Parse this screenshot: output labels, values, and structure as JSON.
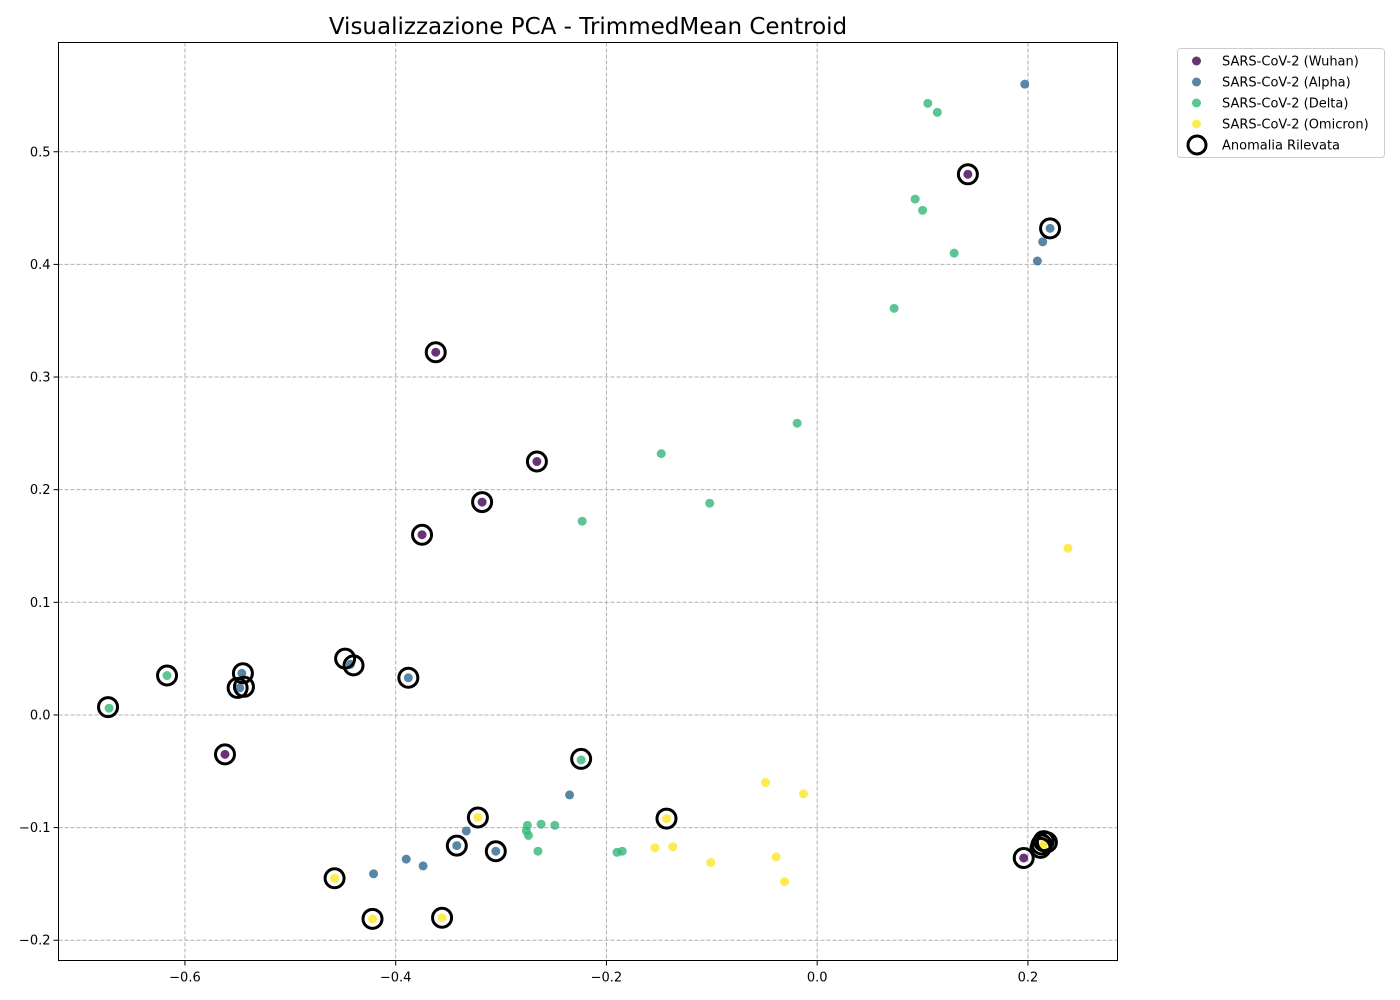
{
  "chart_data": {
    "type": "scatter",
    "title": "Visualizzazione PCA - TrimmedMean Centroid",
    "xlabel": "",
    "ylabel": "",
    "xlim": [
      -0.72,
      0.285
    ],
    "ylim": [
      -0.218,
      0.597
    ],
    "x_ticks": [
      -0.6,
      -0.4,
      -0.2,
      0.0,
      0.2
    ],
    "x_tick_labels": [
      "−0.6",
      "−0.4",
      "−0.2",
      "0.0",
      "0.2"
    ],
    "y_ticks": [
      -0.2,
      -0.1,
      0.0,
      0.1,
      0.2,
      0.3,
      0.4,
      0.5
    ],
    "y_tick_labels": [
      "−0.2",
      "−0.1",
      "0.0",
      "0.1",
      "0.2",
      "0.3",
      "0.4",
      "0.5"
    ],
    "grid": true,
    "legend_position": "outside-top-right",
    "series": [
      {
        "name": "SARS-CoV-2 (Wuhan)",
        "color": "#440154",
        "points": [
          [
            0.143,
            0.48
          ],
          [
            -0.362,
            0.322
          ],
          [
            -0.266,
            0.225
          ],
          [
            -0.318,
            0.189
          ],
          [
            -0.375,
            0.16
          ],
          [
            -0.562,
            -0.035
          ],
          [
            0.196,
            -0.127
          ]
        ]
      },
      {
        "name": "SARS-CoV-2 (Alpha)",
        "color": "#31688e",
        "points": [
          [
            0.197,
            0.56
          ],
          [
            0.221,
            0.432
          ],
          [
            0.214,
            0.42
          ],
          [
            0.209,
            0.403
          ],
          [
            -0.546,
            0.037
          ],
          [
            -0.548,
            0.024
          ],
          [
            -0.443,
            0.045
          ],
          [
            -0.388,
            0.033
          ],
          [
            -0.235,
            -0.071
          ],
          [
            -0.333,
            -0.103
          ],
          [
            -0.342,
            -0.116
          ],
          [
            -0.305,
            -0.121
          ],
          [
            -0.39,
            -0.128
          ],
          [
            -0.374,
            -0.134
          ],
          [
            -0.421,
            -0.141
          ]
        ]
      },
      {
        "name": "SARS-CoV-2 (Delta)",
        "color": "#35b779",
        "points": [
          [
            0.105,
            0.543
          ],
          [
            0.114,
            0.535
          ],
          [
            0.093,
            0.458
          ],
          [
            0.1,
            0.448
          ],
          [
            0.13,
            0.41
          ],
          [
            0.073,
            0.361
          ],
          [
            -0.019,
            0.259
          ],
          [
            -0.148,
            0.232
          ],
          [
            -0.102,
            0.188
          ],
          [
            -0.223,
            0.172
          ],
          [
            -0.617,
            0.035
          ],
          [
            -0.672,
            0.006
          ],
          [
            -0.224,
            -0.04
          ],
          [
            -0.275,
            -0.098
          ],
          [
            -0.262,
            -0.097
          ],
          [
            -0.249,
            -0.098
          ],
          [
            -0.276,
            -0.103
          ],
          [
            -0.274,
            -0.107
          ],
          [
            -0.265,
            -0.121
          ],
          [
            -0.19,
            -0.122
          ],
          [
            -0.185,
            -0.121
          ]
        ]
      },
      {
        "name": "SARS-CoV-2 (Omicron)",
        "color": "#fde725",
        "points": [
          [
            0.238,
            0.148
          ],
          [
            -0.049,
            -0.06
          ],
          [
            -0.013,
            -0.07
          ],
          [
            -0.143,
            -0.092
          ],
          [
            -0.322,
            -0.091
          ],
          [
            -0.154,
            -0.118
          ],
          [
            -0.137,
            -0.117
          ],
          [
            -0.101,
            -0.131
          ],
          [
            -0.039,
            -0.126
          ],
          [
            -0.031,
            -0.148
          ],
          [
            -0.458,
            -0.145
          ],
          [
            -0.422,
            -0.181
          ],
          [
            -0.356,
            -0.18
          ],
          [
            0.216,
            -0.113
          ],
          [
            0.214,
            -0.117
          ]
        ]
      },
      {
        "name": "Anomalia Rilevata",
        "color": "#000000",
        "marker": "hollow-circle",
        "points": [
          [
            0.143,
            0.48
          ],
          [
            0.221,
            0.432
          ],
          [
            -0.362,
            0.322
          ],
          [
            -0.266,
            0.225
          ],
          [
            -0.318,
            0.189
          ],
          [
            -0.375,
            0.16
          ],
          [
            -0.448,
            0.05
          ],
          [
            -0.44,
            0.044
          ],
          [
            -0.388,
            0.033
          ],
          [
            -0.545,
            0.037
          ],
          [
            -0.544,
            0.025
          ],
          [
            -0.55,
            0.024
          ],
          [
            -0.617,
            0.035
          ],
          [
            -0.673,
            0.007
          ],
          [
            -0.562,
            -0.035
          ],
          [
            -0.224,
            -0.039
          ],
          [
            -0.322,
            -0.091
          ],
          [
            -0.143,
            -0.092
          ],
          [
            -0.342,
            -0.116
          ],
          [
            -0.305,
            -0.121
          ],
          [
            -0.458,
            -0.145
          ],
          [
            -0.422,
            -0.181
          ],
          [
            -0.356,
            -0.18
          ],
          [
            0.196,
            -0.127
          ],
          [
            0.215,
            -0.112
          ],
          [
            0.218,
            -0.113
          ],
          [
            0.213,
            -0.115
          ],
          [
            0.212,
            -0.118
          ]
        ]
      }
    ]
  }
}
